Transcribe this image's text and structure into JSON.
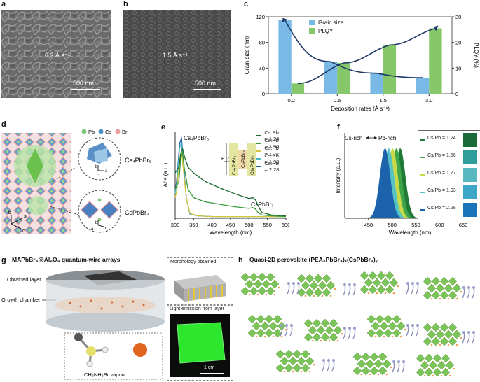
{
  "panel_labels": {
    "a": "a",
    "b": "b",
    "c": "c",
    "d": "d",
    "e": "e",
    "f": "f",
    "g": "g",
    "h": "h"
  },
  "panel_a": {
    "rate": "0.2 Å s⁻¹",
    "scale": "500 nm"
  },
  "panel_b": {
    "rate": "1.5 Å s⁻¹",
    "scale": "500 nm"
  },
  "panel_d": {
    "legend": [
      "Pb",
      "Cs",
      "Br"
    ],
    "legend_colors": [
      "#7fc97f",
      "#4a90c2",
      "#e8a0a0"
    ],
    "phase_top": "Cs₄PbBr₆",
    "phase_bottom": "CsPbBr₃",
    "axis_top": [
      "b",
      "a",
      "c"
    ],
    "axis_bottom": [
      "b",
      "a",
      "c"
    ],
    "axis_main": [
      "b",
      "c",
      "a"
    ]
  },
  "panel_e_labels": {
    "peak_left": "Cs₄PbBr₆",
    "peak_right": "CsPbBr₃",
    "eg": "E_g",
    "stack": [
      "Cs₄PbBr₆",
      "CsPbBr₃",
      "Cs₄PbBr₆"
    ]
  },
  "panel_f_labels": {
    "cs_rich": "Cs-rich",
    "pb_rich": "Pb-rich",
    "swatch_labels": [
      "Cs/Pb = 1.24",
      "Cs/Pb = 1.56",
      "Cs/Pb = 1.77",
      "Cs/Pb = 1.93",
      "Cs/Pb = 2.28"
    ]
  },
  "panel_g": {
    "title": "MAPbBr₃@Al₂O₃ quantum-wire arrays",
    "label_layer": "Obtained layer",
    "label_chamber": "Growth chamber",
    "vapour": "CH₃NH₃Br vapour",
    "morph": "Morphology obtained",
    "emission": "Light emission from layer",
    "scale": "1 cm"
  },
  "panel_h": {
    "title": "Quasi-2D perovskite (PEA₂PbBr₄)ₓ(CsPbBr₃)ᵧ"
  },
  "chart_data": [
    {
      "id": "c",
      "type": "bar",
      "title": "",
      "categories": [
        "0.2",
        "0.5",
        "1.5",
        "3.0"
      ],
      "xlabel": "Deposition rates (Å s⁻¹)",
      "ylabel": "Grain size (nm)",
      "y2label": "PLQY (%)",
      "ylim": [
        0,
        120
      ],
      "y2lim": [
        0,
        30
      ],
      "yticks": [
        "0",
        "40",
        "80",
        "120"
      ],
      "y2ticks": [
        "0",
        "10",
        "20",
        "30"
      ],
      "series": [
        {
          "name": "Grain size",
          "axis": "left",
          "color": "#7ab8e6",
          "values": [
            115,
            50,
            32,
            25
          ]
        },
        {
          "name": "PLQY",
          "axis": "right",
          "color": "#86c76a",
          "values": [
            4,
            12,
            19,
            25.5
          ]
        }
      ]
    },
    {
      "id": "e",
      "type": "line",
      "xlabel": "Wavelength (nm)",
      "ylabel": "Abs (a.u.)",
      "xlim": [
        300,
        600
      ],
      "xticks": [
        "300",
        "350",
        "400",
        "450",
        "500",
        "550",
        "600"
      ],
      "series": [
        {
          "name": "Cs:Pb = 1.24",
          "color": "#1e6b30",
          "x": [
            300,
            310,
            315,
            320,
            325,
            335,
            350,
            380,
            420,
            460,
            500,
            510,
            518,
            525,
            535,
            560,
            600
          ],
          "y": [
            0.55,
            0.62,
            0.78,
            0.85,
            0.75,
            0.62,
            0.55,
            0.45,
            0.37,
            0.3,
            0.24,
            0.25,
            0.22,
            0.15,
            0.07,
            0.04,
            0.03
          ]
        },
        {
          "name": "Cs:Pb = 1.56",
          "color": "#3a9a3a",
          "x": [
            300,
            310,
            315,
            320,
            325,
            335,
            350,
            380,
            420,
            460,
            500,
            510,
            518,
            525,
            535,
            560,
            600
          ],
          "y": [
            0.35,
            0.45,
            0.72,
            0.8,
            0.6,
            0.35,
            0.25,
            0.2,
            0.17,
            0.14,
            0.12,
            0.13,
            0.11,
            0.07,
            0.04,
            0.03,
            0.02
          ]
        },
        {
          "name": "Cs:Pb = 1.77",
          "color": "#d6c63c",
          "x": [
            300,
            305,
            312,
            317,
            322,
            330,
            340,
            360,
            400,
            500,
            600
          ],
          "y": [
            0.25,
            0.35,
            0.72,
            0.82,
            0.6,
            0.25,
            0.06,
            0.03,
            0.02,
            0.02,
            0.02
          ]
        },
        {
          "name": "Cs:Pb = 1.93",
          "color": "#4ab8c8",
          "x": [
            300,
            305,
            312,
            317,
            322,
            330,
            340,
            360,
            400,
            500,
            600
          ],
          "y": [
            0.3,
            0.45,
            0.85,
            0.92,
            0.65,
            0.25,
            0.05,
            0.03,
            0.02,
            0.02,
            0.02
          ]
        },
        {
          "name": "Cs:Pb = 2.28",
          "color": "#1f5fa8",
          "x": [
            300,
            305,
            312,
            317,
            322,
            330,
            340,
            360,
            400,
            500,
            600
          ],
          "y": [
            0.3,
            0.5,
            0.9,
            0.98,
            0.7,
            0.25,
            0.05,
            0.03,
            0.02,
            0.02,
            0.02
          ]
        }
      ]
    },
    {
      "id": "f",
      "type": "area",
      "xlabel": "Wavelength (nm)",
      "ylabel": "Intensity (a.u.)",
      "xlim": [
        400,
        675
      ],
      "xticks": [
        "450",
        "500",
        "550",
        "600",
        "650"
      ],
      "series": [
        {
          "name": "Cs/Pb = 1.24",
          "color": "#1e7a34",
          "center": 517,
          "width": 11
        },
        {
          "name": "Cs/Pb = 1.56",
          "color": "#3fa54a",
          "center": 509,
          "width": 11
        },
        {
          "name": "Cs/Pb = 1.77",
          "color": "#c9d94a",
          "center": 501,
          "width": 11
        },
        {
          "name": "Cs/Pb = 1.93",
          "color": "#56c4c4",
          "center": 493,
          "width": 11
        },
        {
          "name": "Cs/Pb = 2.28",
          "color": "#1c63ac",
          "center": 485,
          "width": 11
        }
      ]
    }
  ]
}
